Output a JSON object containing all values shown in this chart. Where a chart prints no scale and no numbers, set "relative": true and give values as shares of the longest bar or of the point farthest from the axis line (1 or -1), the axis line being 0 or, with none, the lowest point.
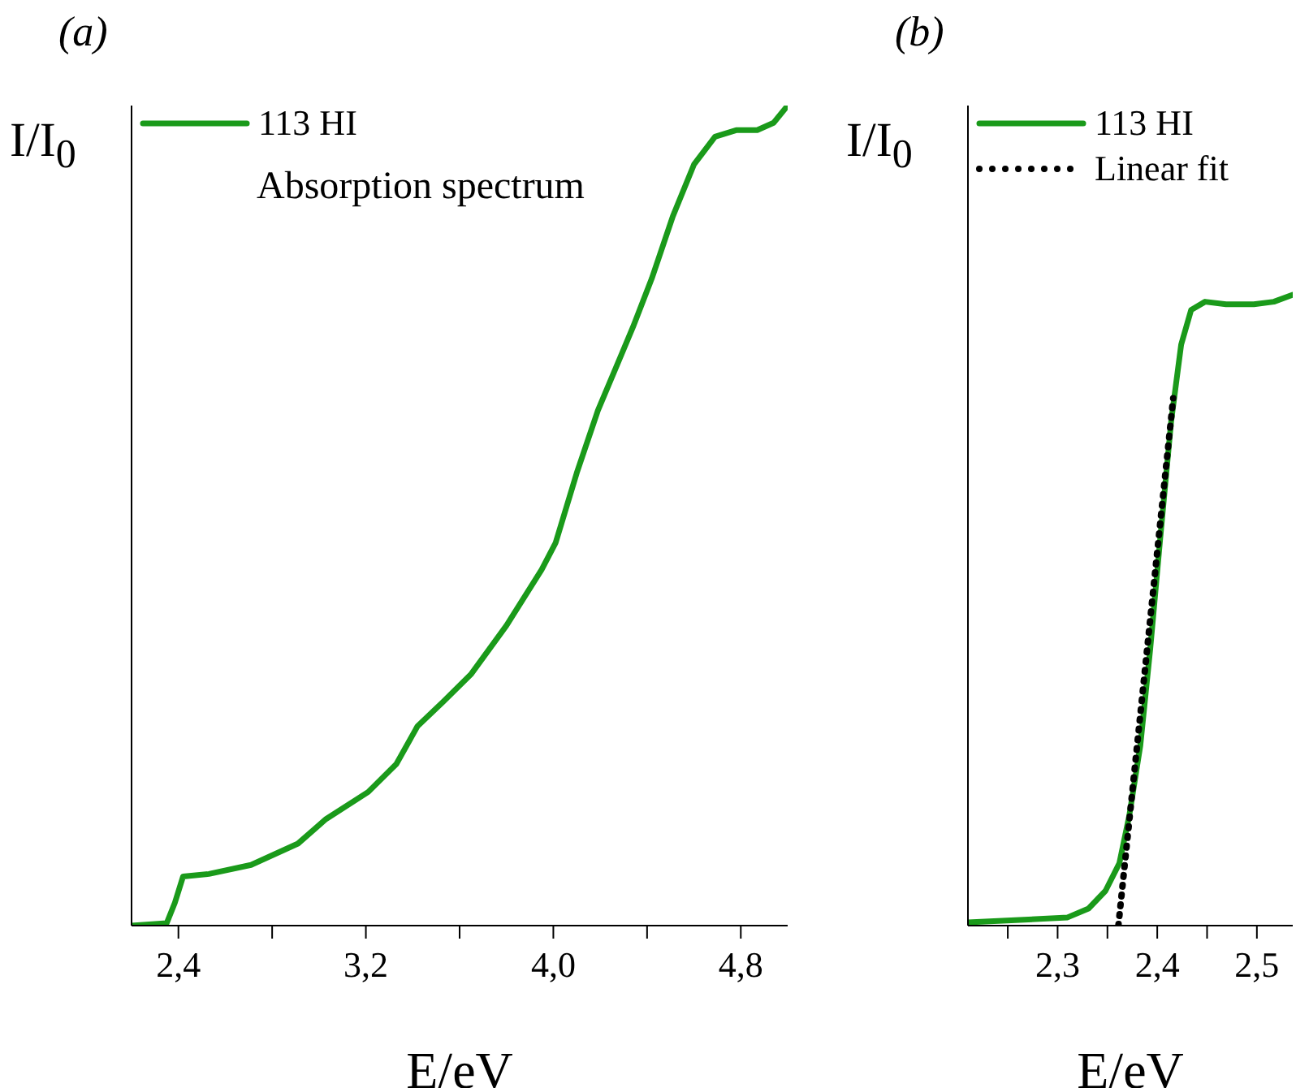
{
  "chart_data": [
    {
      "type": "line",
      "title": "(a)",
      "xlabel": "E/eV",
      "ylabel": "I/I$_{0}$",
      "relative": true,
      "xlim": [
        2.2,
        5.0
      ],
      "xticks": [
        {
          "value": 2.4,
          "label": "2,4"
        },
        {
          "value": 2.8,
          "label": null
        },
        {
          "value": 3.2,
          "label": "3,2"
        },
        {
          "value": 3.6,
          "label": null
        },
        {
          "value": 4.0,
          "label": "4,0"
        },
        {
          "value": 4.4,
          "label": null
        },
        {
          "value": 4.8,
          "label": "4,8"
        }
      ],
      "legend": "top left",
      "annotations": [
        "Absorption spectrum"
      ],
      "series": [
        {
          "name": "113 HI",
          "color": "#1a9a1a",
          "x": [
            2.2,
            2.35,
            2.385,
            2.42,
            2.53,
            2.71,
            2.91,
            3.03,
            3.21,
            3.33,
            3.42,
            3.53,
            3.65,
            3.8,
            3.95,
            4.01,
            4.1,
            4.19,
            4.34,
            4.42,
            4.51,
            4.6,
            4.69,
            4.78,
            4.87,
            4.94,
            5.0
          ],
          "values": [
            0,
            0.003,
            0.028,
            0.06,
            0.063,
            0.074,
            0.1,
            0.13,
            0.163,
            0.197,
            0.243,
            0.273,
            0.307,
            0.366,
            0.434,
            0.467,
            0.552,
            0.628,
            0.73,
            0.789,
            0.865,
            0.928,
            0.962,
            0.97,
            0.97,
            0.979,
            1.0
          ]
        }
      ]
    },
    {
      "type": "line",
      "title": "(b)",
      "xlabel": "E/eV",
      "ylabel": "I/I$_{0}$",
      "relative": true,
      "xlim": [
        2.21,
        2.536
      ],
      "xticks": [
        {
          "value": 2.25,
          "label": null
        },
        {
          "value": 2.3,
          "label": "2,3"
        },
        {
          "value": 2.35,
          "label": null
        },
        {
          "value": 2.4,
          "label": "2,4"
        },
        {
          "value": 2.45,
          "label": null
        },
        {
          "value": 2.5,
          "label": "2,5"
        }
      ],
      "legend": "top left",
      "series": [
        {
          "name": "113 HI",
          "color": "#1a9a1a",
          "x": [
            2.21,
            2.262,
            2.31,
            2.331,
            2.348,
            2.362,
            2.372,
            2.383,
            2.393,
            2.403,
            2.414,
            2.424,
            2.434,
            2.448,
            2.469,
            2.497,
            2.517,
            2.536
          ],
          "values": [
            0.005,
            0.009,
            0.013,
            0.027,
            0.055,
            0.099,
            0.175,
            0.285,
            0.439,
            0.614,
            0.8,
            0.921,
            0.976,
            0.989,
            0.985,
            0.985,
            0.989,
            1.0
          ]
        },
        {
          "name": "Linear fit",
          "type": "line",
          "color": "#000000",
          "line_style": "dotted",
          "x": [
            2.361,
            2.416
          ],
          "values": [
            0,
            0.836
          ]
        }
      ]
    }
  ]
}
